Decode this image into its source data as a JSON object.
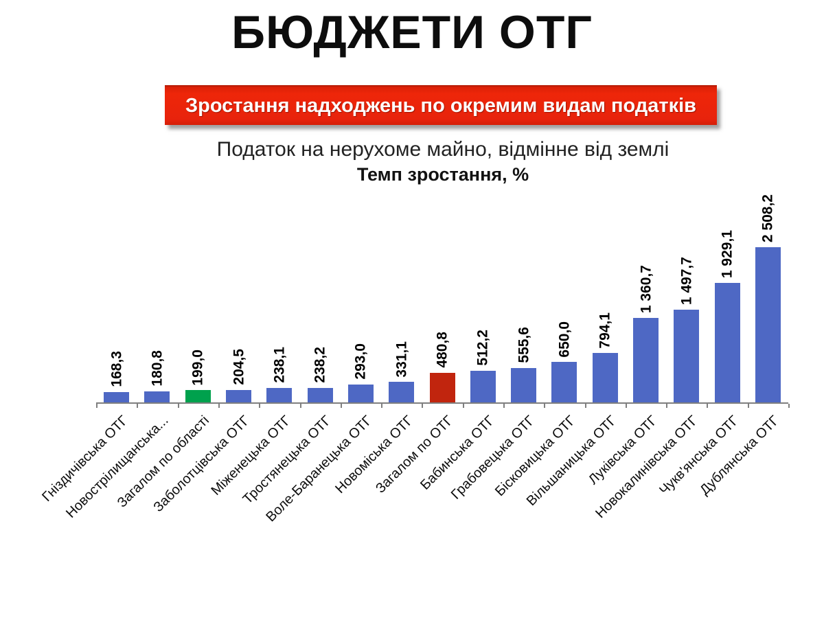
{
  "title": "БЮДЖЕТИ ОТГ",
  "banner": {
    "label": "Зростання надходжень по окремим видам податків",
    "bg_color": "#E8230C",
    "text_color": "#FFFFFF"
  },
  "subtitle_line1": "Податок на нерухоме майно, відмінне від землі",
  "subtitle_line2": "Темп зростання, %",
  "chart_data": {
    "type": "bar",
    "title": "Темп зростання, %",
    "xlabel": "",
    "ylabel": "Темп зростання, %",
    "ylim": [
      0,
      2600
    ],
    "grid": false,
    "legend": false,
    "value_label_rotation_deg": 90,
    "category_label_rotation_deg": 45,
    "categories": [
      "Гніздичівська ОТГ",
      "Новострілищанська...",
      "Загалом по області",
      "Заболотцівська ОТГ",
      "Міженецька ОТГ",
      "Тростянецька ОТГ",
      "Воле-Баранецька ОТГ",
      "Новоміська ОТГ",
      "Загалом по ОТГ",
      "Бабинська ОТГ",
      "Грабовецька ОТГ",
      "Бісковицька ОТГ",
      "Вільшаницька ОТГ",
      "Луківська ОТГ",
      "Новокалинівська ОТГ",
      "Чукв'янська ОТГ",
      "Дублянська ОТГ"
    ],
    "values": [
      168.3,
      180.8,
      199.0,
      204.5,
      238.1,
      238.2,
      293.0,
      331.1,
      480.8,
      512.2,
      555.6,
      650.0,
      794.1,
      1360.7,
      1497.7,
      1929.1,
      2508.2
    ],
    "value_labels": [
      "168,3",
      "180,8",
      "199,0",
      "204,5",
      "238,1",
      "238,2",
      "293,0",
      "331,1",
      "480,8",
      "512,2",
      "555,6",
      "650,0",
      "794,1",
      "1 360,7",
      "1 497,7",
      "1 929,1",
      "2 508,2"
    ],
    "bar_colors": [
      "#4E68C4",
      "#4E68C4",
      "#00A14D",
      "#4E68C4",
      "#4E68C4",
      "#4E68C4",
      "#4E68C4",
      "#4E68C4",
      "#C1250E",
      "#4E68C4",
      "#4E68C4",
      "#4E68C4",
      "#4E68C4",
      "#4E68C4",
      "#4E68C4",
      "#4E68C4",
      "#4E68C4"
    ],
    "highlight_notes": {
      "green_bar_category": "Загалом по області",
      "red_bar_category": "Загалом по ОТГ"
    },
    "axis_color": "#7F7F7F"
  }
}
